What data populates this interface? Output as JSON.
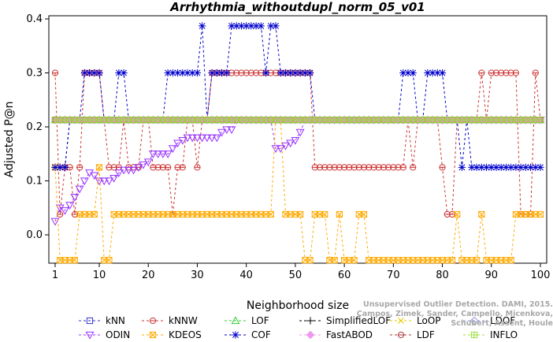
{
  "chart_data": {
    "type": "line",
    "title": "Arrhythmia_withoutdupl_norm_05_v01",
    "xlabel": "Neighborhood size",
    "ylabel": "Adjusted P@n",
    "xlim": [
      1,
      100
    ],
    "ylim": [
      -0.05,
      0.4
    ],
    "xticks": [
      "1",
      "10",
      "20",
      "30",
      "40",
      "50",
      "60",
      "70",
      "80",
      "90",
      "100"
    ],
    "yticks": [
      "0.0",
      "0.1",
      "0.2",
      "0.3",
      "0.4"
    ],
    "legend_position": "bottom",
    "series": [
      {
        "name": "kNN",
        "color": "#3333cc",
        "marker": "square",
        "x": [
          1,
          100
        ],
        "y": [
          0.213,
          0.213
        ]
      },
      {
        "name": "kNNW",
        "color": "#cc3333",
        "marker": "circle-plus",
        "x": [
          1,
          2,
          3,
          4,
          5,
          6,
          7,
          8,
          9,
          10,
          11,
          12,
          13,
          14,
          15,
          16,
          17,
          18,
          19,
          20,
          21,
          22,
          23,
          24,
          25,
          26,
          27,
          28,
          29,
          30,
          31,
          32,
          33,
          34,
          35,
          36,
          37,
          38,
          39,
          40,
          41,
          42,
          43,
          44,
          45,
          46,
          47,
          48,
          49,
          50,
          51,
          52,
          53,
          54,
          55,
          56,
          57,
          58,
          59,
          60,
          61,
          62,
          63,
          64,
          65,
          66,
          67,
          68,
          69,
          70,
          71,
          72,
          73,
          74,
          75,
          76,
          77,
          78,
          79,
          80,
          81,
          82,
          83,
          84,
          85,
          86,
          87,
          88,
          89,
          90,
          91,
          92,
          93,
          94,
          95,
          96,
          97,
          98,
          99,
          100
        ],
        "y": [
          0.3,
          0.038,
          0.125,
          0.125,
          0.038,
          0.125,
          0.3,
          0.3,
          0.3,
          0.3,
          0.213,
          0.125,
          0.125,
          0.125,
          0.213,
          0.125,
          0.125,
          0.125,
          0.213,
          0.213,
          0.125,
          0.125,
          0.125,
          0.125,
          0.038,
          0.125,
          0.125,
          0.213,
          0.213,
          0.125,
          0.213,
          0.213,
          0.3,
          0.3,
          0.3,
          0.3,
          0.3,
          0.3,
          0.3,
          0.3,
          0.3,
          0.3,
          0.3,
          0.3,
          0.3,
          0.3,
          0.3,
          0.3,
          0.3,
          0.3,
          0.3,
          0.3,
          0.3,
          0.125,
          0.125,
          0.125,
          0.125,
          0.125,
          0.125,
          0.125,
          0.125,
          0.125,
          0.125,
          0.125,
          0.125,
          0.125,
          0.125,
          0.125,
          0.125,
          0.125,
          0.125,
          0.125,
          0.213,
          0.125,
          0.213,
          0.213,
          0.213,
          0.213,
          0.213,
          0.125,
          0.038,
          0.038,
          0.213,
          0.213,
          0.213,
          0.213,
          0.213,
          0.3,
          0.213,
          0.3,
          0.3,
          0.3,
          0.3,
          0.3,
          0.3,
          0.038,
          0.038,
          0.038,
          0.3,
          0.213
        ]
      },
      {
        "name": "LOF",
        "color": "#33cc33",
        "marker": "triangle-up",
        "x": [
          1,
          100
        ],
        "y": [
          0.213,
          0.213
        ]
      },
      {
        "name": "SimplifiedLOF",
        "color": "#000000",
        "marker": "plus",
        "x": [
          1,
          2,
          3,
          4,
          5,
          6,
          7,
          8,
          9,
          10,
          11,
          12,
          13,
          14,
          15,
          16,
          17,
          18,
          19,
          20,
          21,
          22,
          23,
          24,
          25,
          26,
          27,
          28,
          29,
          30,
          31,
          32,
          33,
          34,
          35,
          36,
          37,
          38,
          39,
          40,
          41,
          42,
          43,
          44,
          45,
          46,
          47,
          48,
          49,
          50,
          51,
          52,
          53,
          54,
          55,
          56,
          57,
          58,
          59,
          60,
          61,
          62,
          63,
          64,
          65,
          66,
          67,
          68,
          69,
          70,
          71,
          72,
          73,
          74,
          75,
          76,
          77,
          78,
          79,
          80,
          81,
          82,
          83,
          84,
          85,
          86,
          87,
          88,
          89,
          90,
          91,
          92,
          93,
          94,
          95,
          96,
          97,
          98,
          99,
          100
        ],
        "y": [
          0.125,
          0.125,
          0.125,
          0.213,
          0.213,
          0.213,
          0.213,
          0.213,
          0.213,
          0.213,
          0.213,
          0.213,
          0.213,
          0.213,
          0.213,
          0.213,
          0.213,
          0.213,
          0.213,
          0.213,
          0.213,
          0.213,
          0.213,
          0.213,
          0.213,
          0.213,
          0.213,
          0.213,
          0.213,
          0.213,
          0.213,
          0.213,
          0.213,
          0.213,
          0.213,
          0.213,
          0.213,
          0.213,
          0.213,
          0.213,
          0.213,
          0.213,
          0.213,
          0.213,
          0.213,
          0.213,
          0.213,
          0.213,
          0.213,
          0.213,
          0.213,
          0.213,
          0.213,
          0.213,
          0.213,
          0.213,
          0.213,
          0.213,
          0.213,
          0.213,
          0.213,
          0.213,
          0.213,
          0.213,
          0.213,
          0.213,
          0.213,
          0.213,
          0.213,
          0.213,
          0.213,
          0.213,
          0.213,
          0.213,
          0.213,
          0.213,
          0.213,
          0.213,
          0.213,
          0.213,
          0.213,
          0.213,
          0.213,
          0.213,
          0.213,
          0.213,
          0.213,
          0.213,
          0.213,
          0.213,
          0.213,
          0.213,
          0.213,
          0.213,
          0.213,
          0.213,
          0.213,
          0.213,
          0.213,
          0.213
        ]
      },
      {
        "name": "LoOP",
        "color": "#e6c800",
        "marker": "cross",
        "x": [
          1,
          100
        ],
        "y": [
          0.213,
          0.213
        ]
      },
      {
        "name": "LDOF",
        "color": "#9999dd",
        "marker": "diamond",
        "x": [
          1,
          100
        ],
        "y": [
          0.213,
          0.213
        ]
      },
      {
        "name": "ODIN",
        "color": "#9933ff",
        "marker": "triangle-down",
        "x": [
          1,
          2,
          3,
          4,
          5,
          6,
          7,
          8,
          9,
          10,
          11,
          12,
          13,
          14,
          15,
          16,
          17,
          18,
          19,
          20,
          21,
          22,
          23,
          24,
          25,
          26,
          27,
          28,
          29,
          30,
          31,
          32,
          33,
          34,
          35,
          36,
          37,
          38,
          39,
          40,
          41,
          42,
          43,
          44,
          45,
          46,
          47,
          48,
          49,
          50,
          51,
          52,
          53,
          54,
          55,
          56,
          57,
          58,
          59,
          60,
          61,
          62,
          63,
          64,
          65,
          66,
          67,
          68,
          69,
          70,
          71,
          72,
          73,
          74,
          75,
          76,
          77,
          78,
          79,
          80,
          81,
          82,
          83,
          84,
          85,
          86,
          87,
          88,
          89,
          90,
          91,
          92,
          93,
          94,
          95,
          96,
          97,
          98,
          99,
          100
        ],
        "y": [
          0.025,
          0.05,
          0.045,
          0.055,
          0.07,
          0.085,
          0.1,
          0.115,
          0.11,
          0.1,
          0.1,
          0.1,
          0.105,
          0.115,
          0.12,
          0.12,
          0.12,
          0.125,
          0.13,
          0.135,
          0.15,
          0.15,
          0.15,
          0.15,
          0.16,
          0.17,
          0.175,
          0.18,
          0.18,
          0.18,
          0.18,
          0.18,
          0.18,
          0.18,
          0.19,
          0.195,
          0.195,
          0.213,
          0.213,
          0.213,
          0.213,
          0.213,
          0.213,
          0.213,
          0.213,
          0.16,
          0.16,
          0.165,
          0.17,
          0.175,
          0.19,
          0.213,
          0.213,
          0.213,
          0.213,
          0.213,
          0.213,
          0.213,
          0.213,
          0.213,
          0.213,
          0.213,
          0.213,
          0.213,
          0.213,
          0.213,
          0.213,
          0.213,
          0.213,
          0.213,
          0.213,
          0.213,
          0.213,
          0.213,
          0.213,
          0.213,
          0.213,
          0.213,
          0.213,
          0.213,
          0.213,
          0.213,
          0.213,
          0.213,
          0.213,
          0.213,
          0.213,
          0.213,
          0.213,
          0.213,
          0.213,
          0.213,
          0.213,
          0.213,
          0.213,
          0.213,
          0.213,
          0.213,
          0.213,
          0.213
        ]
      },
      {
        "name": "KDEOS",
        "color": "#ffaa00",
        "marker": "square-x",
        "x": [
          1,
          2,
          3,
          4,
          5,
          6,
          7,
          8,
          9,
          10,
          11,
          12,
          13,
          14,
          15,
          16,
          17,
          18,
          19,
          20,
          21,
          22,
          23,
          24,
          25,
          26,
          27,
          28,
          29,
          30,
          31,
          32,
          33,
          34,
          35,
          36,
          37,
          38,
          39,
          40,
          41,
          42,
          43,
          44,
          45,
          46,
          47,
          48,
          49,
          50,
          51,
          52,
          53,
          54,
          55,
          56,
          57,
          58,
          59,
          60,
          61,
          62,
          63,
          64,
          65,
          66,
          67,
          68,
          69,
          70,
          71,
          72,
          73,
          74,
          75,
          76,
          77,
          78,
          79,
          80,
          81,
          82,
          83,
          84,
          85,
          86,
          87,
          88,
          89,
          90,
          91,
          92,
          93,
          94,
          95,
          96,
          97,
          98,
          99,
          100
        ],
        "y": [
          0.125,
          -0.047,
          -0.047,
          -0.047,
          -0.047,
          0.038,
          0.038,
          0.038,
          0.038,
          0.125,
          -0.047,
          -0.047,
          0.038,
          0.038,
          0.038,
          0.038,
          0.038,
          0.038,
          0.038,
          0.038,
          0.038,
          0.038,
          0.038,
          0.038,
          0.038,
          0.038,
          0.038,
          0.038,
          0.038,
          0.038,
          0.038,
          0.038,
          0.038,
          0.038,
          0.038,
          0.038,
          0.038,
          0.038,
          0.038,
          0.038,
          0.038,
          0.038,
          0.038,
          0.038,
          0.038,
          0.213,
          0.213,
          0.038,
          0.038,
          0.038,
          0.038,
          -0.047,
          -0.047,
          0.038,
          0.038,
          0.038,
          -0.047,
          -0.047,
          0.038,
          -0.047,
          -0.047,
          -0.047,
          0.038,
          0.038,
          -0.047,
          -0.047,
          -0.047,
          -0.047,
          -0.047,
          -0.047,
          -0.047,
          -0.047,
          -0.047,
          -0.047,
          -0.047,
          -0.047,
          -0.047,
          -0.047,
          -0.047,
          -0.047,
          -0.047,
          -0.047,
          0.038,
          -0.047,
          -0.047,
          -0.047,
          -0.047,
          0.038,
          -0.047,
          -0.047,
          -0.047,
          -0.047,
          -0.047,
          -0.047,
          0.038,
          0.038,
          0.038,
          0.038,
          0.038,
          0.038
        ]
      },
      {
        "name": "COF",
        "color": "#0000cc",
        "marker": "star",
        "x": [
          1,
          2,
          3,
          4,
          5,
          6,
          7,
          8,
          9,
          10,
          11,
          12,
          13,
          14,
          15,
          16,
          17,
          18,
          19,
          20,
          21,
          22,
          23,
          24,
          25,
          26,
          27,
          28,
          29,
          30,
          31,
          32,
          33,
          34,
          35,
          36,
          37,
          38,
          39,
          40,
          41,
          42,
          43,
          44,
          45,
          46,
          47,
          48,
          49,
          50,
          51,
          52,
          53,
          54,
          55,
          56,
          57,
          58,
          59,
          60,
          61,
          62,
          63,
          64,
          65,
          66,
          67,
          68,
          69,
          70,
          71,
          72,
          73,
          74,
          75,
          76,
          77,
          78,
          79,
          80,
          81,
          82,
          83,
          84,
          85,
          86,
          87,
          88,
          89,
          90,
          91,
          92,
          93,
          94,
          95,
          96,
          97,
          98,
          99,
          100
        ],
        "y": [
          0.125,
          0.125,
          0.125,
          0.213,
          0.213,
          0.213,
          0.3,
          0.3,
          0.3,
          0.3,
          0.213,
          0.213,
          0.213,
          0.3,
          0.3,
          0.213,
          0.213,
          0.213,
          0.213,
          0.213,
          0.213,
          0.213,
          0.213,
          0.3,
          0.3,
          0.3,
          0.3,
          0.3,
          0.3,
          0.3,
          0.387,
          0.213,
          0.3,
          0.3,
          0.3,
          0.3,
          0.387,
          0.387,
          0.387,
          0.387,
          0.387,
          0.387,
          0.387,
          0.3,
          0.387,
          0.387,
          0.3,
          0.3,
          0.3,
          0.3,
          0.3,
          0.3,
          0.3,
          0.213,
          0.213,
          0.213,
          0.213,
          0.213,
          0.213,
          0.213,
          0.213,
          0.213,
          0.213,
          0.213,
          0.213,
          0.213,
          0.213,
          0.213,
          0.213,
          0.213,
          0.213,
          0.3,
          0.3,
          0.3,
          0.213,
          0.213,
          0.3,
          0.3,
          0.3,
          0.3,
          0.213,
          0.213,
          0.213,
          0.125,
          0.213,
          0.125,
          0.125,
          0.125,
          0.125,
          0.125,
          0.125,
          0.125,
          0.125,
          0.125,
          0.125,
          0.125,
          0.125,
          0.125,
          0.125,
          0.125
        ]
      },
      {
        "name": "FastABOD",
        "color": "#ee99ee",
        "marker": "diamond-filled",
        "x": [
          1,
          100
        ],
        "y": [
          0.213,
          0.213
        ]
      },
      {
        "name": "LDF",
        "color": "#aa3333",
        "marker": "circle-dash",
        "x": [
          1,
          100
        ],
        "y": [
          0.213,
          0.213
        ]
      },
      {
        "name": "INFLO",
        "color": "#99dd33",
        "marker": "square-star",
        "x": [
          1,
          100
        ],
        "y": [
          0.213,
          0.213
        ]
      }
    ]
  },
  "credit_line1": "Campos, Zimek, Sander, Campello, Micenkova, Schubert, Assent, Houle",
  "credit_line2": "Unsupervised Outlier Detection. DAMI, 2015."
}
